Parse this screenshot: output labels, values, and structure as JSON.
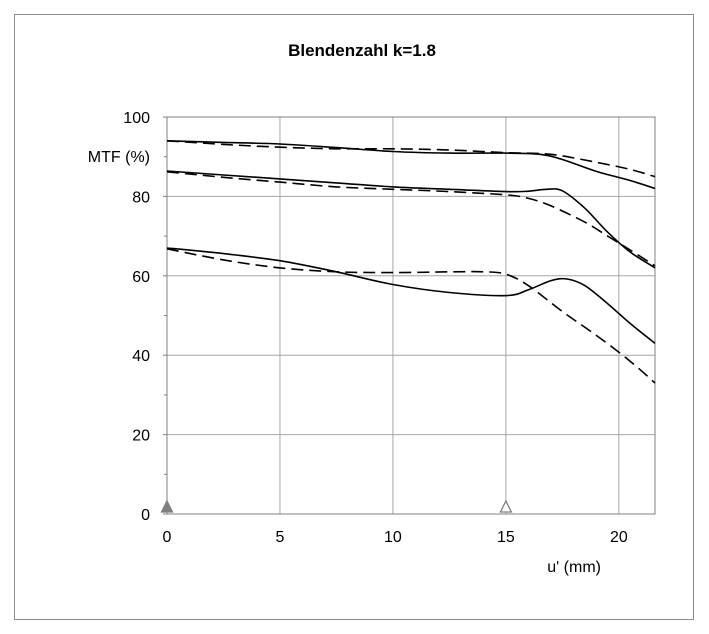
{
  "chart_data": {
    "type": "line",
    "title": "Blendenzahl k=1.8",
    "xlabel": "u' (mm)",
    "ylabel": "MTF (%)",
    "xlim": [
      0,
      21.6
    ],
    "ylim": [
      0,
      100
    ],
    "xticks": [
      0,
      5,
      10,
      15,
      20
    ],
    "yticks": [
      0,
      20,
      40,
      60,
      80,
      100
    ],
    "grid": true,
    "markers": [
      {
        "x": 0,
        "y": 1.5,
        "style": "filled-triangle",
        "color": "#808080"
      },
      {
        "x": 15,
        "y": 1.5,
        "style": "hollow-triangle",
        "color": "#808080"
      }
    ],
    "series": [
      {
        "style": "solid",
        "color": "#000000",
        "x": [
          0,
          2.5,
          5,
          7.5,
          10,
          12.5,
          15,
          16.5,
          17.5,
          19,
          20.5,
          21.6
        ],
        "y": [
          94,
          93.6,
          93.2,
          92.3,
          91.3,
          90.9,
          90.9,
          90.6,
          89.3,
          86.3,
          84,
          82
        ]
      },
      {
        "style": "dashed",
        "color": "#000000",
        "x": [
          0,
          2.5,
          5,
          7.5,
          10,
          12.5,
          15,
          16.5,
          17.5,
          19,
          20.5,
          21.6
        ],
        "y": [
          94,
          93.1,
          92.4,
          92,
          92,
          91.7,
          91,
          90.8,
          90.2,
          88.6,
          86.8,
          85
        ]
      },
      {
        "style": "solid",
        "color": "#000000",
        "x": [
          0,
          2.5,
          5,
          7.5,
          10,
          12.5,
          15,
          16,
          16.8,
          17.5,
          18.5,
          19.5,
          20.5,
          21.6
        ],
        "y": [
          86.4,
          85.4,
          84.4,
          83.4,
          82.4,
          81.8,
          81.2,
          81.3,
          81.8,
          81.4,
          77,
          71,
          66,
          62
        ]
      },
      {
        "style": "dashed",
        "color": "#000000",
        "x": [
          0,
          2.5,
          5,
          7.5,
          10,
          12.5,
          15,
          16,
          17,
          18.5,
          19.5,
          20.5,
          21.6
        ],
        "y": [
          86.2,
          84.8,
          83.6,
          82.4,
          81.8,
          81.2,
          80.4,
          79.5,
          77.6,
          73.5,
          70,
          66.5,
          62.5
        ]
      },
      {
        "style": "solid",
        "color": "#000000",
        "x": [
          0,
          2.5,
          5,
          7.5,
          10,
          12.5,
          15,
          16,
          17,
          17.7,
          18.5,
          19.5,
          20.5,
          21.6
        ],
        "y": [
          67,
          65.6,
          63.8,
          61,
          57.8,
          55.8,
          55,
          56.5,
          58.8,
          59.2,
          57.5,
          53,
          48,
          43
        ]
      },
      {
        "style": "dashed",
        "color": "#000000",
        "x": [
          0,
          2.5,
          5,
          7.5,
          10,
          12.5,
          14,
          15,
          16,
          17.5,
          19,
          20.5,
          21.6
        ],
        "y": [
          66.8,
          64,
          62,
          61,
          60.8,
          61,
          61,
          60.4,
          57.5,
          51,
          45,
          38.5,
          33
        ]
      }
    ]
  }
}
